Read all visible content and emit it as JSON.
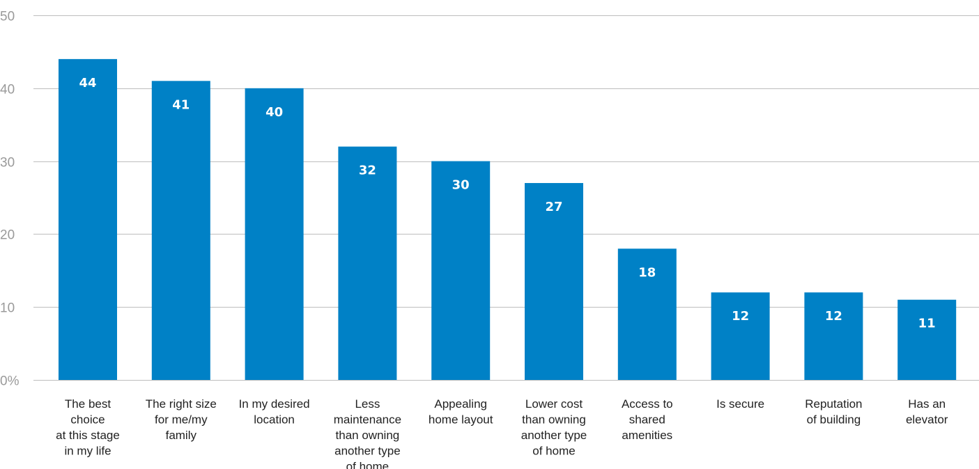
{
  "chart_data": {
    "type": "bar",
    "title": "",
    "xlabel": "",
    "ylabel": "",
    "ylim": [
      0,
      50
    ],
    "grid": true,
    "legend": "none",
    "bar_color": "#0081C6",
    "grid_color": "#bdbdbd",
    "y_ticks": [
      {
        "value": 0,
        "label": "0%"
      },
      {
        "value": 10,
        "label": "10"
      },
      {
        "value": 20,
        "label": "20"
      },
      {
        "value": 30,
        "label": "30"
      },
      {
        "value": 40,
        "label": "40"
      },
      {
        "value": 50,
        "label": "50"
      }
    ],
    "categories": [
      [
        "The best",
        "choice",
        "at this stage",
        "in my life"
      ],
      [
        "The right size",
        "for me/my",
        "family"
      ],
      [
        "In my desired",
        "location"
      ],
      [
        "Less",
        "maintenance",
        "than owning",
        "another type",
        "of home"
      ],
      [
        "Appealing",
        "home layout"
      ],
      [
        "Lower cost",
        "than owning",
        "another type",
        "of home"
      ],
      [
        "Access to",
        "shared",
        "amenities"
      ],
      [
        "Is secure"
      ],
      [
        "Reputation",
        "of building"
      ],
      [
        "Has an",
        "elevator"
      ]
    ],
    "values": [
      44,
      41,
      40,
      32,
      30,
      27,
      18,
      12,
      12,
      11
    ],
    "data_labels": [
      "44",
      "41",
      "40",
      "32",
      "30",
      "27",
      "18",
      "12",
      "12",
      "11"
    ]
  }
}
